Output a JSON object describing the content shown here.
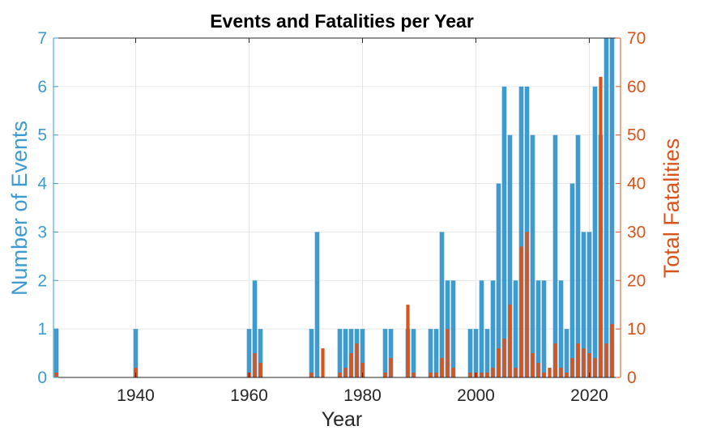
{
  "chart_data": {
    "type": "bar",
    "title": "Events and Fatalities per Year",
    "xlabel": "Year",
    "ylabel_left": "Number of Events",
    "ylabel_right": "Total Fatalities",
    "xlim": [
      1925.5,
      2025.5
    ],
    "xticks": [
      1940,
      1960,
      1980,
      2000,
      2020
    ],
    "ylim_left": [
      0,
      7
    ],
    "yticks_left": [
      0,
      1,
      2,
      3,
      4,
      5,
      6,
      7
    ],
    "ylim_right": [
      0,
      70
    ],
    "yticks_right": [
      0,
      10,
      20,
      30,
      40,
      50,
      60,
      70
    ],
    "grid": true,
    "colors": {
      "events": "#3d9bd0",
      "fatalities": "#d9541a",
      "axis": "#262626",
      "grid": "#e6e6e6"
    },
    "series": [
      {
        "name": "Number of Events",
        "axis": "left",
        "x": [
          1926,
          1940,
          1960,
          1961,
          1962,
          1971,
          1972,
          1976,
          1977,
          1978,
          1979,
          1980,
          1984,
          1985,
          1988,
          1989,
          1992,
          1993,
          1994,
          1995,
          1996,
          1999,
          2000,
          2001,
          2002,
          2003,
          2004,
          2005,
          2006,
          2007,
          2008,
          2009,
          2010,
          2011,
          2012,
          2014,
          2015,
          2016,
          2017,
          2018,
          2019,
          2020,
          2021,
          2022,
          2023,
          2024
        ],
        "values": [
          1,
          1,
          1,
          2,
          1,
          1,
          3,
          1,
          1,
          1,
          1,
          1,
          1,
          1,
          1,
          1,
          1,
          1,
          3,
          2,
          2,
          1,
          1,
          2,
          1,
          2,
          4,
          6,
          5,
          2,
          6,
          6,
          5,
          2,
          2,
          5,
          2,
          1,
          4,
          5,
          3,
          3,
          6,
          5,
          7,
          7
        ]
      },
      {
        "name": "Total Fatalities",
        "axis": "right",
        "x": [
          1926,
          1940,
          1960,
          1961,
          1962,
          1971,
          1973,
          1976,
          1977,
          1978,
          1979,
          1980,
          1984,
          1985,
          1988,
          1989,
          1992,
          1993,
          1994,
          1995,
          1996,
          1999,
          2000,
          2001,
          2002,
          2003,
          2004,
          2005,
          2006,
          2007,
          2008,
          2009,
          2010,
          2011,
          2012,
          2013,
          2014,
          2015,
          2016,
          2017,
          2018,
          2019,
          2020,
          2021,
          2022,
          2023,
          2024
        ],
        "values": [
          1,
          2,
          1,
          5,
          3,
          1,
          6,
          1,
          2,
          5,
          7,
          3,
          1,
          4,
          15,
          1,
          1,
          1,
          4,
          10,
          2,
          1,
          1,
          1,
          1,
          2,
          6,
          8,
          15,
          2,
          27,
          30,
          5,
          3,
          1,
          2,
          7,
          2,
          1,
          4,
          7,
          6,
          5,
          4,
          62,
          7,
          11
        ]
      }
    ]
  }
}
